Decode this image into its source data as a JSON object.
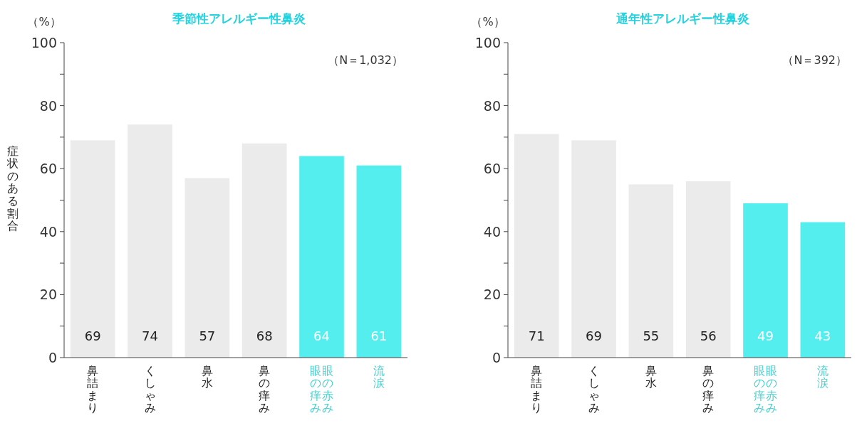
{
  "chart_data": [
    {
      "type": "bar",
      "title": "季節性アレルギー性鼻炎",
      "ylabel": "症状のある割合",
      "annotations": [
        "（%）",
        "（N＝1,032）"
      ],
      "categories": [
        "鼻詰まり",
        "くしゃみ",
        "鼻水",
        "鼻の痒み",
        "眼の赤み眼の痒み",
        "流涙"
      ],
      "values": [
        69,
        74,
        57,
        68,
        64,
        61
      ],
      "colors": [
        "#ebebeb",
        "#ebebeb",
        "#ebebeb",
        "#ebebeb",
        "#55eeee",
        "#55eeee"
      ],
      "ylim": [
        0,
        100
      ],
      "yticks": [
        0,
        {
          "value": 10,
          "label": null
        },
        20,
        {
          "value": 30,
          "label": null
        },
        40,
        {
          "value": 50,
          "label": null
        },
        60,
        {
          "value": 70,
          "label": null
        },
        80,
        {
          "value": 90,
          "label": null
        },
        100
      ],
      "data_labels": true
    },
    {
      "type": "bar",
      "title": "通年性アレルギー性鼻炎",
      "annotations": [
        "（%）",
        "（N＝392）"
      ],
      "categories": [
        "鼻詰まり",
        "くしゃみ",
        "鼻水",
        "鼻の痒み",
        "眼の赤み眼の痒み",
        "流涙"
      ],
      "values": [
        71,
        69,
        55,
        56,
        49,
        43
      ],
      "colors": [
        "#ebebeb",
        "#ebebeb",
        "#ebebeb",
        "#ebebeb",
        "#55eeee",
        "#55eeee"
      ],
      "ylim": [
        0,
        100
      ],
      "yticks": [
        0,
        {
          "value": 10,
          "label": null
        },
        20,
        {
          "value": 30,
          "label": null
        },
        40,
        {
          "value": 50,
          "label": null
        },
        60,
        {
          "value": 70,
          "label": null
        },
        80,
        {
          "value": 90,
          "label": null
        },
        100
      ],
      "data_labels": true
    }
  ]
}
